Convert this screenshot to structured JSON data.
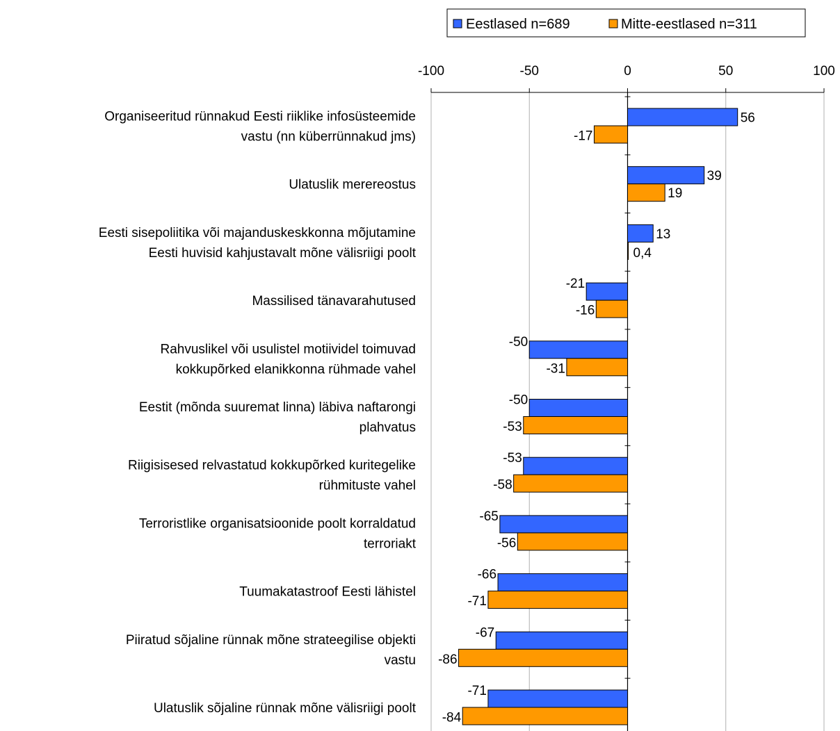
{
  "chart_data": {
    "type": "bar",
    "orientation": "horizontal",
    "xlim": [
      -100,
      100
    ],
    "ticks": [
      "-100",
      "-50",
      "0",
      "50",
      "100"
    ],
    "grid": true,
    "legend_position": "top",
    "categories": [
      [
        "Organiseeritud rünnakud Eesti riiklike infosüsteemide",
        "vastu (nn küberrünnakud jms)"
      ],
      [
        "Ulatuslik merereostus"
      ],
      [
        "Eesti sisepoliitika või majanduskeskkonna mõjutamine",
        "Eesti huvisid kahjustavalt mõne välisriigi poolt"
      ],
      [
        "Massilised tänavarahutused"
      ],
      [
        "Rahvuslikel või usulistel motiividel toimuvad",
        "kokkupõrked elanikkonna rühmade vahel"
      ],
      [
        "Eestit (mõnda suuremat linna) läbiva naftarongi",
        "plahvatus"
      ],
      [
        "Riigisisesed relvastatud kokkupõrked kuritegelike",
        "rühmituste vahel"
      ],
      [
        "Terroristlike organisatsioonide poolt korraldatud",
        "terroriakt"
      ],
      [
        "Tuumakatastroof Eesti lähistel"
      ],
      [
        "Piiratud sõjaline rünnak mõne strateegilise objekti",
        "vastu"
      ],
      [
        "Ulatuslik sõjaline rünnak mõne välisriigi poolt"
      ]
    ],
    "series": [
      {
        "name": "Eestlased n=689",
        "color": "#3366ff",
        "values": [
          56,
          39,
          13,
          -21,
          -50,
          -50,
          -53,
          -65,
          -66,
          -67,
          -71
        ],
        "labels": [
          "56",
          "39",
          "13",
          "-21",
          "-50",
          "-50",
          "-53",
          "-65",
          "-66",
          "-67",
          "-71"
        ]
      },
      {
        "name": "Mitte-eestlased n=311",
        "color": "#ff9900",
        "values": [
          -17,
          19,
          0.4,
          -16,
          -31,
          -53,
          -58,
          -56,
          -71,
          -86,
          -84
        ],
        "labels": [
          "-17",
          "19",
          "0,4",
          "-16",
          "-31",
          "-53",
          "-58",
          "-56",
          "-71",
          "-86",
          "-84"
        ]
      }
    ]
  }
}
